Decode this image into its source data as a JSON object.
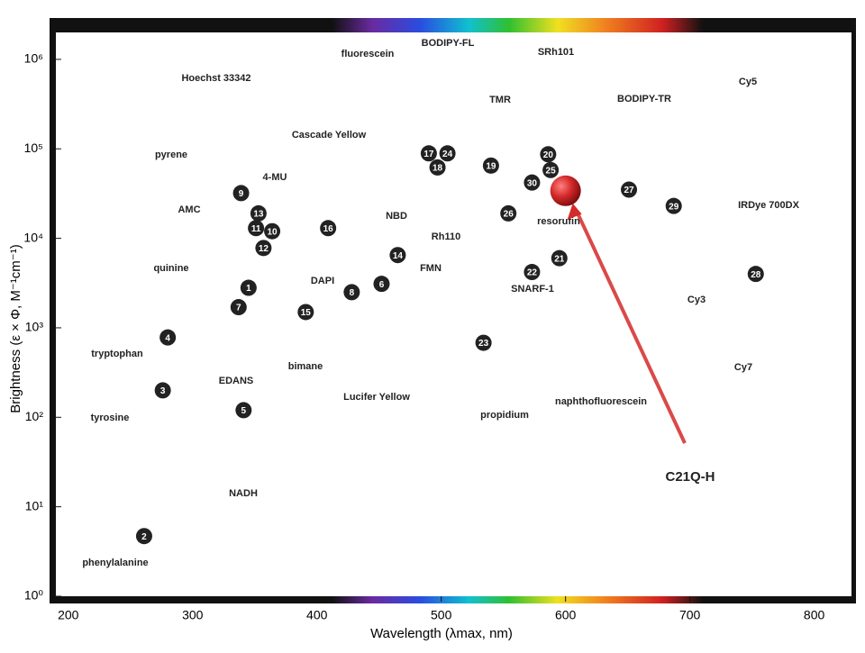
{
  "chart_data": {
    "type": "scatter",
    "xlabel": "Wavelength (λmax, nm)",
    "ylabel": "Brightness (ε × Φ, M⁻¹cm⁻¹)",
    "xlim": [
      190,
      830
    ],
    "ylim": [
      1,
      2000000
    ],
    "log_y": true,
    "xticks": [
      200,
      300,
      400,
      500,
      600,
      700,
      800
    ],
    "yticks": [
      {
        "value": 1,
        "label": "10⁰"
      },
      {
        "value": 10,
        "label": "10¹"
      },
      {
        "value": 100,
        "label": "10²"
      },
      {
        "value": 1000,
        "label": "10³"
      },
      {
        "value": 10000,
        "label": "10⁴"
      },
      {
        "value": 100000,
        "label": "10⁵"
      },
      {
        "value": 1000000,
        "label": "10⁶"
      }
    ],
    "color": "#222222",
    "labels": [
      "1",
      "2",
      "3",
      "4",
      "5",
      "6",
      "7",
      "8",
      "9",
      "10",
      "11",
      "12",
      "13",
      "14",
      "15",
      "16",
      "17",
      "18",
      "19",
      "20",
      "21",
      "22",
      "23",
      "24",
      "25",
      "26",
      "27",
      "28",
      "29",
      "30"
    ],
    "x": [
      345,
      261,
      276,
      280,
      341,
      452,
      337,
      428,
      339,
      364,
      351,
      357,
      353,
      465,
      391,
      409,
      490,
      497,
      540,
      586,
      595,
      573,
      534,
      505,
      588,
      554,
      651,
      753,
      687,
      573
    ],
    "y": [
      2800,
      4.7,
      200,
      780,
      120,
      3100,
      1700,
      2500,
      32000,
      12000,
      13000,
      7800,
      19000,
      6500,
      1500,
      13000,
      89000,
      62000,
      65000,
      87000,
      6000,
      4200,
      680,
      89000,
      58000,
      19000,
      35000,
      4000,
      23000,
      42000
    ],
    "highlight": {
      "name": "C21Q-H",
      "x": 600,
      "y": 34000,
      "color": "#d42a2a"
    },
    "annotations": [
      "fluorescein",
      "BODIPY-FL",
      "SRh101",
      "Hoechst 33342",
      "TMR",
      "BODIPY-TR",
      "Cy5",
      "Cascade Yellow",
      "pyrene",
      "4-MU",
      "AMC",
      "NBD",
      "resorufin",
      "IRDye 700DX",
      "Rh110",
      "quinine",
      "FMN",
      "DAPI",
      "SNARF-1",
      "Cy3",
      "tryptophan",
      "bimane",
      "EDANS",
      "Lucifer Yellow",
      "Cy7",
      "tyrosine",
      "propidium",
      "naphthofluorescein",
      "NADH",
      "phenylalanine"
    ]
  }
}
